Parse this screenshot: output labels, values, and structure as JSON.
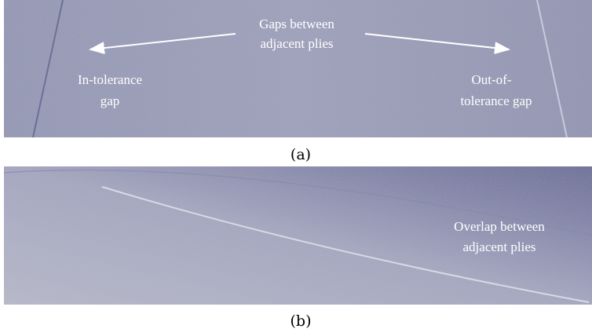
{
  "panels": [
    {
      "caption": "(a)",
      "annotations": [
        {
          "lines": [
            "Gaps between",
            "adjacent plies"
          ]
        },
        {
          "lines": [
            "In-tolerance",
            "gap"
          ]
        },
        {
          "lines": [
            "Out-of-",
            "tolerance gap"
          ]
        }
      ]
    },
    {
      "caption": "(b)",
      "annotations": [
        {
          "lines": [
            "Overlap between",
            "adjacent plies"
          ]
        }
      ]
    }
  ]
}
